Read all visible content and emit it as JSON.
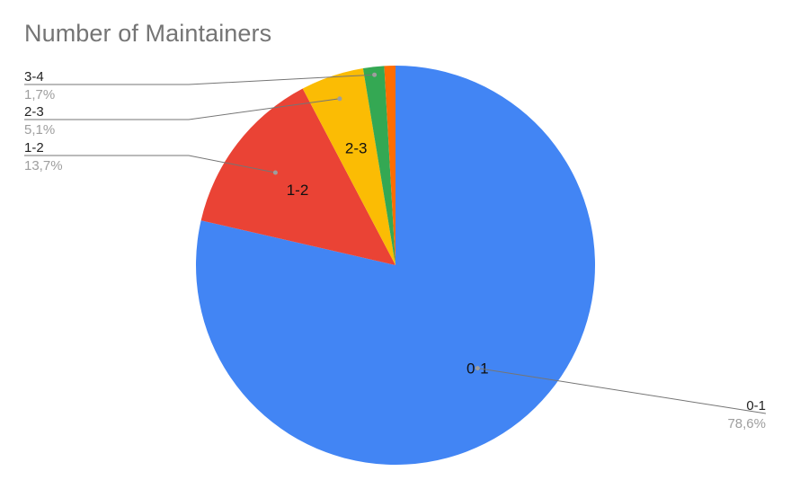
{
  "chart_data": {
    "type": "pie",
    "title": "Number of Maintainers",
    "legend": "none",
    "slices": [
      {
        "label": "0-1",
        "percent_label": "78,6%",
        "value": 78.6,
        "color": "#4285f4",
        "inner_label": "0-1"
      },
      {
        "label": "1-2",
        "percent_label": "13,7%",
        "value": 13.7,
        "color": "#ea4335",
        "inner_label": "1-2"
      },
      {
        "label": "2-3",
        "percent_label": "5,1%",
        "value": 5.1,
        "color": "#fbbc04",
        "inner_label": "2-3"
      },
      {
        "label": "3-4",
        "percent_label": "1,7%",
        "value": 1.7,
        "color": "#34a853",
        "inner_label": ""
      },
      {
        "label": "",
        "percent_label": "",
        "value": 0.9,
        "color": "#ff6d01",
        "inner_label": ""
      }
    ]
  }
}
